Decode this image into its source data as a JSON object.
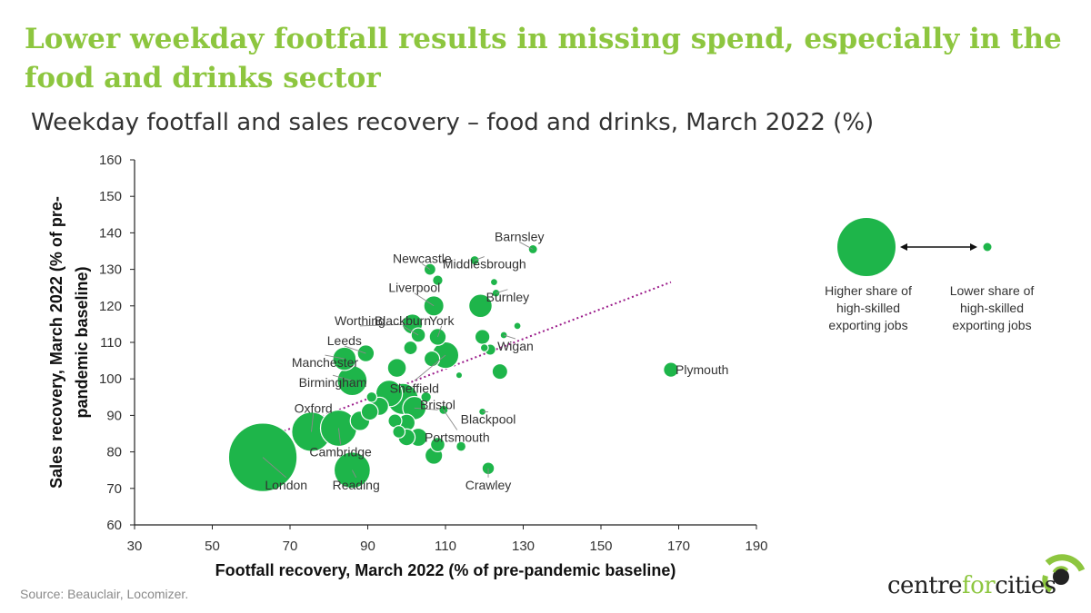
{
  "headline": "Lower weekday footfall results in missing spend, especially in the food and drinks sector",
  "source": "Source: Beauclair, Locomizer.",
  "logo": {
    "part1": "centre",
    "part2": "for",
    "part3": "cities"
  },
  "colors": {
    "brand_green": "#8dc63f",
    "bubble": "#1eb54a",
    "trend": "#9b1b8a"
  },
  "legend": {
    "high_label": [
      "Higher share of",
      "high-skilled",
      "exporting jobs"
    ],
    "low_label": [
      "Lower share of",
      "high-skilled",
      "exporting jobs"
    ]
  },
  "chart_data": {
    "type": "scatter",
    "title": "Weekday footfall and sales recovery – food and drinks, March 2022 (%)",
    "xlabel": "Footfall recovery, March 2022 (% of pre-pandemic baseline)",
    "ylabel_lines": [
      "Sales recovery, March 2022 (% of pre-",
      "pandemic baseline)"
    ],
    "xlim": [
      30,
      190
    ],
    "ylim": [
      60,
      160
    ],
    "xticks": [
      30,
      50,
      70,
      90,
      110,
      130,
      150,
      170,
      190
    ],
    "yticks": [
      60,
      70,
      80,
      90,
      100,
      110,
      120,
      130,
      140,
      150,
      160
    ],
    "trend_line": {
      "x": [
        63,
        168
      ],
      "y": [
        83.5,
        126.5
      ]
    },
    "bubble_size_meaning": "Share of high-skilled exporting jobs",
    "points": [
      {
        "name": "London",
        "x": 63,
        "y": 78.5,
        "size": 10
      },
      {
        "name": "Reading",
        "x": 86,
        "y": 75,
        "size": 5
      },
      {
        "name": "Oxford",
        "x": 75.5,
        "y": 85.5,
        "size": 5.5
      },
      {
        "name": "Cambridge",
        "x": 82.5,
        "y": 86.5,
        "size": 5
      },
      {
        "name": "Birmingham",
        "x": 86,
        "y": 99.5,
        "size": 4
      },
      {
        "name": "Manchester",
        "x": 84,
        "y": 105.5,
        "size": 3
      },
      {
        "name": "Leeds",
        "x": 89.5,
        "y": 107,
        "size": 2
      },
      {
        "name": "Worthing",
        "x": 101.5,
        "y": 115,
        "size": 2.5
      },
      {
        "name": "Blackburn",
        "x": 103,
        "y": 112,
        "size": 1.6
      },
      {
        "name": "Liverpool",
        "x": 107,
        "y": 120,
        "size": 2.5
      },
      {
        "name": "Newcastle",
        "x": 106,
        "y": 130,
        "size": 1.2
      },
      {
        "name": "York",
        "x": 108,
        "y": 111.5,
        "size": 2
      },
      {
        "name": "Sheffield",
        "x": 110,
        "y": 106.5,
        "size": 3.5
      },
      {
        "name": "Bristol",
        "x": 102,
        "y": 92,
        "size": 3
      },
      {
        "name": "Portsmouth",
        "x": 109.5,
        "y": 91.5,
        "size": 0.8
      },
      {
        "name": "Blackpool",
        "x": 119.5,
        "y": 91,
        "size": 0.5
      },
      {
        "name": "Crawley",
        "x": 121,
        "y": 75.5,
        "size": 1.3
      },
      {
        "name": "Plymouth",
        "x": 168,
        "y": 102.5,
        "size": 1.7
      },
      {
        "name": "Wigan",
        "x": 125,
        "y": 112,
        "size": 0.5
      },
      {
        "name": "Burnley",
        "x": 123,
        "y": 123.5,
        "size": 0.6
      },
      {
        "name": "Middlesbrough",
        "x": 117.5,
        "y": 132.5,
        "size": 0.8
      },
      {
        "name": "Barnsley",
        "x": 132.5,
        "y": 135.5,
        "size": 0.8
      },
      {
        "name": "",
        "x": 119,
        "y": 120,
        "size": 3
      },
      {
        "name": "",
        "x": 119.5,
        "y": 111.5,
        "size": 1.7
      },
      {
        "name": "",
        "x": 121.5,
        "y": 108,
        "size": 1.1
      },
      {
        "name": "",
        "x": 120,
        "y": 108.5,
        "size": 0.6
      },
      {
        "name": "",
        "x": 124,
        "y": 102,
        "size": 1.8
      },
      {
        "name": "",
        "x": 128.5,
        "y": 114.5,
        "size": 0.5
      },
      {
        "name": "",
        "x": 122.5,
        "y": 126.5,
        "size": 0.5
      },
      {
        "name": "",
        "x": 108,
        "y": 127,
        "size": 1
      },
      {
        "name": "",
        "x": 97.5,
        "y": 103,
        "size": 2.3
      },
      {
        "name": "",
        "x": 95.5,
        "y": 96,
        "size": 3.5
      },
      {
        "name": "",
        "x": 99,
        "y": 94.5,
        "size": 4.2
      },
      {
        "name": "",
        "x": 93,
        "y": 92.5,
        "size": 2.2
      },
      {
        "name": "",
        "x": 90.5,
        "y": 91,
        "size": 2
      },
      {
        "name": "",
        "x": 91,
        "y": 95,
        "size": 1
      },
      {
        "name": "",
        "x": 88,
        "y": 88.5,
        "size": 2.4
      },
      {
        "name": "",
        "x": 97,
        "y": 88.5,
        "size": 1.5
      },
      {
        "name": "",
        "x": 100,
        "y": 88,
        "size": 2
      },
      {
        "name": "",
        "x": 98,
        "y": 85.5,
        "size": 1.3
      },
      {
        "name": "",
        "x": 100,
        "y": 84,
        "size": 2
      },
      {
        "name": "",
        "x": 103,
        "y": 84,
        "size": 2.2
      },
      {
        "name": "",
        "x": 107,
        "y": 79,
        "size": 2.1
      },
      {
        "name": "",
        "x": 108,
        "y": 82,
        "size": 1.6
      },
      {
        "name": "",
        "x": 114,
        "y": 81.5,
        "size": 0.9
      },
      {
        "name": "",
        "x": 106.5,
        "y": 105.5,
        "size": 1.8
      },
      {
        "name": "",
        "x": 101,
        "y": 108.5,
        "size": 1.5
      },
      {
        "name": "",
        "x": 113.5,
        "y": 101,
        "size": 0.4
      },
      {
        "name": "",
        "x": 105,
        "y": 95,
        "size": 1
      }
    ],
    "labels": [
      {
        "name": "Newcastle",
        "x": 104,
        "y": 133
      },
      {
        "name": "Liverpool",
        "x": 102,
        "y": 125
      },
      {
        "name": "Worthing",
        "x": 88,
        "y": 116
      },
      {
        "name": "Blackburn",
        "x": 99,
        "y": 116
      },
      {
        "name": "York",
        "x": 109,
        "y": 116
      },
      {
        "name": "Leeds",
        "x": 84,
        "y": 110.5
      },
      {
        "name": "Manchester",
        "x": 79,
        "y": 104.5
      },
      {
        "name": "Birmingham",
        "x": 81,
        "y": 99
      },
      {
        "name": "Oxford",
        "x": 76,
        "y": 92
      },
      {
        "name": "Cambridge",
        "x": 83,
        "y": 80
      },
      {
        "name": "London",
        "x": 69,
        "y": 71
      },
      {
        "name": "Reading",
        "x": 87,
        "y": 71
      },
      {
        "name": "Sheffield",
        "x": 102,
        "y": 97.5
      },
      {
        "name": "Bristol",
        "x": 108,
        "y": 93
      },
      {
        "name": "Blackpool",
        "x": 121,
        "y": 89
      },
      {
        "name": "Portsmouth",
        "x": 113,
        "y": 84
      },
      {
        "name": "Crawley",
        "x": 121,
        "y": 71
      },
      {
        "name": "Barnsley",
        "x": 129,
        "y": 139
      },
      {
        "name": "Middlesbrough",
        "x": 120,
        "y": 131.5
      },
      {
        "name": "Burnley",
        "x": 126,
        "y": 122.5
      },
      {
        "name": "Wigan",
        "x": 128,
        "y": 109
      },
      {
        "name": "Plymouth",
        "x": 172,
        "y": 102.5
      }
    ]
  }
}
